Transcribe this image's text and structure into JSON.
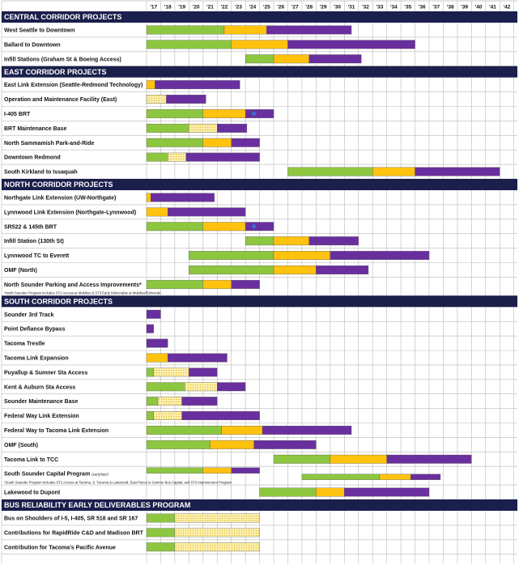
{
  "chart_data": {
    "type": "gantt",
    "title": "",
    "years": [
      "'17",
      "'18",
      "'19",
      "'20",
      "'21",
      "'22",
      "'23",
      "'24",
      "'25",
      "'26",
      "'27",
      "'28",
      "'29",
      "'30",
      "'31",
      "'32",
      "'33",
      "'34",
      "'35",
      "'36",
      "'37",
      "'38",
      "'39",
      "'40",
      "'41",
      "'42"
    ],
    "legend": "none",
    "colors": {
      "green": "#8dc63f",
      "yellow": "#ffc20e",
      "purple": "#6a2f9e",
      "hatch": "#fbeeaa",
      "header_bg": "#1b1f4b",
      "grid": "#b9b9b9",
      "marker": "#3a6fd8"
    },
    "sections": [
      {
        "title": "CENTRAL CORRIDOR PROJECTS",
        "projects": [
          {
            "name": "West Seattle to Downtown",
            "segments": [
              {
                "start": 2017.0,
                "end": 2022.5,
                "color": "green"
              },
              {
                "start": 2022.5,
                "end": 2025.5,
                "color": "yellow"
              },
              {
                "start": 2025.5,
                "end": 2031.5,
                "color": "purple"
              }
            ]
          },
          {
            "name": "Ballard to Downtown",
            "segments": [
              {
                "start": 2017.0,
                "end": 2023.0,
                "color": "green"
              },
              {
                "start": 2023.0,
                "end": 2027.0,
                "color": "yellow"
              },
              {
                "start": 2027.0,
                "end": 2036.0,
                "color": "purple"
              }
            ]
          },
          {
            "name": "Infill Stations (Graham St & Boeing Access)",
            "segments": [
              {
                "start": 2024.0,
                "end": 2026.0,
                "color": "green"
              },
              {
                "start": 2026.0,
                "end": 2028.5,
                "color": "yellow"
              },
              {
                "start": 2028.5,
                "end": 2032.2,
                "color": "purple"
              }
            ]
          }
        ]
      },
      {
        "title": "EAST CORRIDOR PROJECTS",
        "projects": [
          {
            "name": "East Link Extension (Seattle-Redmond Technology)",
            "segments": [
              {
                "start": 2017.0,
                "end": 2017.6,
                "color": "yellow"
              },
              {
                "start": 2017.6,
                "end": 2023.6,
                "color": "purple"
              }
            ]
          },
          {
            "name": "Operation and Maintenance Facility (East)",
            "segments": [
              {
                "start": 2017.0,
                "end": 2018.4,
                "color": "hatch"
              },
              {
                "start": 2018.4,
                "end": 2021.2,
                "color": "purple"
              }
            ]
          },
          {
            "name": "I-405 BRT",
            "segments": [
              {
                "start": 2017.0,
                "end": 2021.0,
                "color": "green"
              },
              {
                "start": 2021.0,
                "end": 2024.0,
                "color": "yellow"
              },
              {
                "start": 2024.0,
                "end": 2026.0,
                "color": "purple"
              }
            ],
            "marker": 2024.6
          },
          {
            "name": "BRT Maintenance Base",
            "segments": [
              {
                "start": 2017.0,
                "end": 2020.0,
                "color": "green"
              },
              {
                "start": 2020.0,
                "end": 2022.0,
                "color": "hatch"
              },
              {
                "start": 2022.0,
                "end": 2024.1,
                "color": "purple"
              }
            ]
          },
          {
            "name": "North Sammamish Park-and-Ride",
            "segments": [
              {
                "start": 2017.0,
                "end": 2021.0,
                "color": "green"
              },
              {
                "start": 2021.0,
                "end": 2023.0,
                "color": "yellow"
              },
              {
                "start": 2023.0,
                "end": 2025.0,
                "color": "purple"
              }
            ]
          },
          {
            "name": "Downtown Redmond",
            "segments": [
              {
                "start": 2017.0,
                "end": 2018.5,
                "color": "green"
              },
              {
                "start": 2018.5,
                "end": 2019.8,
                "color": "hatch"
              },
              {
                "start": 2019.8,
                "end": 2025.0,
                "color": "purple"
              }
            ]
          },
          {
            "name": "South Kirkland to Issaquah",
            "segments": [
              {
                "start": 2027.0,
                "end": 2033.0,
                "color": "green"
              },
              {
                "start": 2033.0,
                "end": 2036.0,
                "color": "yellow"
              },
              {
                "start": 2036.0,
                "end": 2042.0,
                "color": "purple"
              }
            ]
          }
        ]
      },
      {
        "title": "NORTH CORRIDOR PROJECTS",
        "projects": [
          {
            "name": "Northgate Link Extension (UW-Northgate)",
            "segments": [
              {
                "start": 2017.0,
                "end": 2017.3,
                "color": "yellow"
              },
              {
                "start": 2017.3,
                "end": 2021.8,
                "color": "purple"
              }
            ]
          },
          {
            "name": "Lynnwood Link Extension (Northgate-Lynnwood)",
            "segments": [
              {
                "start": 2017.0,
                "end": 2018.5,
                "color": "yellow"
              },
              {
                "start": 2018.5,
                "end": 2024.0,
                "color": "purple"
              }
            ]
          },
          {
            "name": "SR522 & 145th BRT",
            "segments": [
              {
                "start": 2017.0,
                "end": 2021.0,
                "color": "green"
              },
              {
                "start": 2021.0,
                "end": 2024.0,
                "color": "yellow"
              },
              {
                "start": 2024.0,
                "end": 2026.0,
                "color": "purple"
              }
            ],
            "marker": 2024.6
          },
          {
            "name": "Infill Station (130th St)",
            "segments": [
              {
                "start": 2024.0,
                "end": 2026.0,
                "color": "green"
              },
              {
                "start": 2026.0,
                "end": 2028.5,
                "color": "yellow"
              },
              {
                "start": 2028.5,
                "end": 2032.0,
                "color": "purple"
              }
            ]
          },
          {
            "name": "Lynnwood TC to Everett",
            "segments": [
              {
                "start": 2020.0,
                "end": 2026.0,
                "color": "green"
              },
              {
                "start": 2026.0,
                "end": 2030.0,
                "color": "yellow"
              },
              {
                "start": 2030.0,
                "end": 2037.0,
                "color": "purple"
              }
            ]
          },
          {
            "name": "OMF (North)",
            "segments": [
              {
                "start": 2020.0,
                "end": 2026.0,
                "color": "green"
              },
              {
                "start": 2026.0,
                "end": 2029.0,
                "color": "yellow"
              },
              {
                "start": 2029.0,
                "end": 2032.7,
                "color": "purple"
              }
            ]
          },
          {
            "name": "North Sounder Parking and Access Improvements*",
            "segments": [
              {
                "start": 2017.0,
                "end": 2021.0,
                "color": "green"
              },
              {
                "start": 2021.0,
                "end": 2023.0,
                "color": "yellow"
              },
              {
                "start": 2023.0,
                "end": 2025.0,
                "color": "purple"
              }
            ],
            "note": "*North Sounder Program includes ST2 Access at Mukilteo & ST3 Early Deliverable at Mukilteo/Edmonds"
          }
        ]
      },
      {
        "title": "SOUTH CORRIDOR PROJECTS",
        "projects": [
          {
            "name": "Sounder 3rd Track",
            "segments": [
              {
                "start": 2017.0,
                "end": 2018.0,
                "color": "purple"
              }
            ]
          },
          {
            "name": "Point Defiance Bypass",
            "segments": [
              {
                "start": 2017.0,
                "end": 2017.5,
                "color": "purple"
              }
            ]
          },
          {
            "name": "Tacoma Trestle",
            "segments": [
              {
                "start": 2017.0,
                "end": 2018.5,
                "color": "purple"
              }
            ]
          },
          {
            "name": "Tacoma Link Expansion",
            "segments": [
              {
                "start": 2017.0,
                "end": 2018.5,
                "color": "yellow"
              },
              {
                "start": 2018.5,
                "end": 2022.7,
                "color": "purple"
              }
            ]
          },
          {
            "name": "Puyallup & Sumner Sta Access",
            "segments": [
              {
                "start": 2017.0,
                "end": 2017.5,
                "color": "green"
              },
              {
                "start": 2017.5,
                "end": 2020.0,
                "color": "hatch"
              },
              {
                "start": 2020.0,
                "end": 2022.0,
                "color": "purple"
              }
            ]
          },
          {
            "name": "Kent & Auburn Sta Access",
            "segments": [
              {
                "start": 2017.0,
                "end": 2019.7,
                "color": "green"
              },
              {
                "start": 2019.7,
                "end": 2022.0,
                "color": "hatch"
              },
              {
                "start": 2022.0,
                "end": 2024.0,
                "color": "purple"
              }
            ]
          },
          {
            "name": "Sounder Maintenance Base",
            "segments": [
              {
                "start": 2017.0,
                "end": 2017.8,
                "color": "green"
              },
              {
                "start": 2017.8,
                "end": 2019.5,
                "color": "hatch"
              },
              {
                "start": 2019.5,
                "end": 2022.0,
                "color": "purple"
              }
            ]
          },
          {
            "name": "Federal Way Link Extension",
            "segments": [
              {
                "start": 2017.0,
                "end": 2017.5,
                "color": "green"
              },
              {
                "start": 2017.5,
                "end": 2019.5,
                "color": "hatch"
              },
              {
                "start": 2019.5,
                "end": 2025.0,
                "color": "purple"
              }
            ]
          },
          {
            "name": "Federal Way to Tacoma Link Extension",
            "segments": [
              {
                "start": 2017.0,
                "end": 2022.3,
                "color": "green"
              },
              {
                "start": 2022.3,
                "end": 2025.2,
                "color": "yellow"
              },
              {
                "start": 2025.2,
                "end": 2031.5,
                "color": "purple"
              }
            ]
          },
          {
            "name": "OMF (South)",
            "segments": [
              {
                "start": 2017.0,
                "end": 2021.5,
                "color": "green"
              },
              {
                "start": 2021.5,
                "end": 2024.6,
                "color": "yellow"
              },
              {
                "start": 2024.6,
                "end": 2029.0,
                "color": "purple"
              }
            ]
          },
          {
            "name": "Tacoma Link to TCC",
            "segments": [
              {
                "start": 2026.0,
                "end": 2030.0,
                "color": "green"
              },
              {
                "start": 2030.0,
                "end": 2034.0,
                "color": "yellow"
              },
              {
                "start": 2034.0,
                "end": 2040.0,
                "color": "purple"
              }
            ]
          },
          {
            "name": "South Sounder Capital Program",
            "name_suffix": "(early/late)*",
            "segments": [
              {
                "start": 2017.0,
                "end": 2021.0,
                "color": "green"
              },
              {
                "start": 2021.0,
                "end": 2023.0,
                "color": "yellow"
              },
              {
                "start": 2023.0,
                "end": 2025.0,
                "color": "purple"
              },
              {
                "start": 2028.0,
                "end": 2033.5,
                "color": "green"
              },
              {
                "start": 2033.5,
                "end": 2035.7,
                "color": "yellow"
              },
              {
                "start": 2035.7,
                "end": 2037.8,
                "color": "purple"
              }
            ],
            "note": "*South Sounder Program includes ST2 Access at Tacoma, S. Tacoma & Lakewood,  East Pierce to Sumner Bus Capital, and ST3 Improvement Program"
          },
          {
            "name": "Lakewood to Dupont",
            "segments": [
              {
                "start": 2025.0,
                "end": 2029.0,
                "color": "green"
              },
              {
                "start": 2029.0,
                "end": 2031.0,
                "color": "yellow"
              },
              {
                "start": 2031.0,
                "end": 2037.0,
                "color": "purple"
              }
            ]
          }
        ]
      },
      {
        "title": "BUS RELIABILITY EARLY DELIVERABLES PROGRAM",
        "projects": [
          {
            "name": "Bus on Shoulders of I-5, I-405, SR 518 and SR 167",
            "segments": [
              {
                "start": 2017.0,
                "end": 2019.0,
                "color": "green"
              },
              {
                "start": 2019.0,
                "end": 2025.0,
                "color": "hatch"
              }
            ]
          },
          {
            "name": "Contributions for RapidRide C&D and Madison BRT",
            "segments": [
              {
                "start": 2017.0,
                "end": 2019.0,
                "color": "green"
              },
              {
                "start": 2019.0,
                "end": 2025.0,
                "color": "hatch"
              }
            ]
          },
          {
            "name": "Contribution for Tacoma's Pacific Avenue",
            "segments": [
              {
                "start": 2017.0,
                "end": 2019.0,
                "color": "green"
              },
              {
                "start": 2019.0,
                "end": 2025.0,
                "color": "hatch"
              }
            ]
          }
        ]
      }
    ]
  }
}
